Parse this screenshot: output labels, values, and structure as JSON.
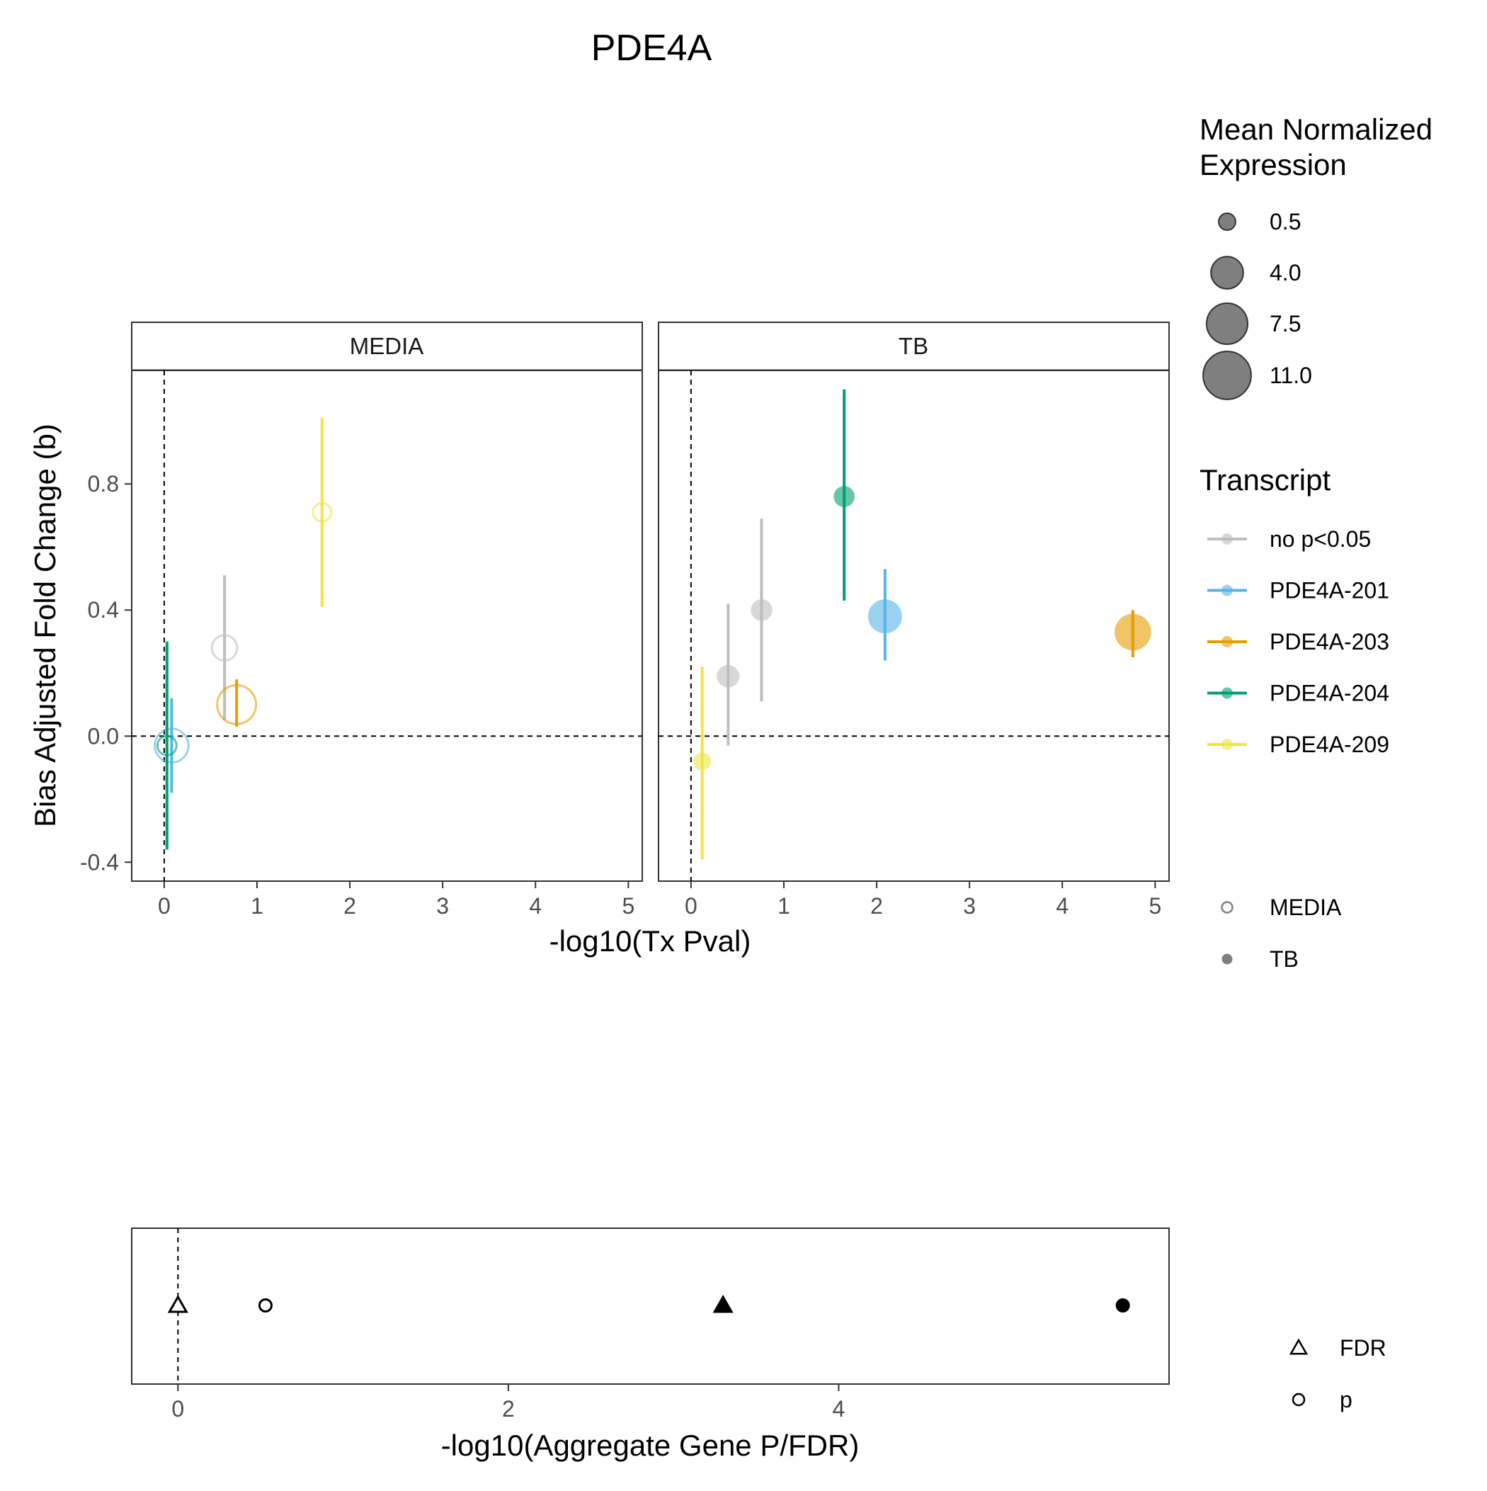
{
  "chart_data": [
    {
      "type": "scatter",
      "title": "PDE4A",
      "xlabel": "-log10(Tx Pval)",
      "ylabel": "Bias Adjusted Fold Change (b)",
      "xlim": [
        -0.35,
        5.15
      ],
      "ylim": [
        -0.46,
        1.16
      ],
      "x_ticks": [
        "0",
        "1",
        "2",
        "3",
        "4",
        "5"
      ],
      "y_ticks": [
        "-0.4",
        "0.0",
        "0.4",
        "0.8"
      ],
      "reference_lines": {
        "x": 0,
        "y": 0,
        "style": "dashed"
      },
      "grid": false,
      "facets": [
        {
          "label": "MEDIA",
          "points": [
            {
              "transcript": "no p<0.05",
              "x": 0.65,
              "y": 0.28,
              "ymin": 0.05,
              "ymax": 0.51,
              "expr": 2.0
            },
            {
              "transcript": "PDE4A-201",
              "x": 0.08,
              "y": -0.03,
              "ymin": -0.18,
              "ymax": 0.12,
              "expr": 4.5
            },
            {
              "transcript": "PDE4A-203",
              "x": 0.78,
              "y": 0.1,
              "ymin": 0.03,
              "ymax": 0.18,
              "expr": 6.5
            },
            {
              "transcript": "PDE4A-204",
              "x": 0.03,
              "y": -0.03,
              "ymin": -0.36,
              "ymax": 0.3,
              "expr": 0.8
            },
            {
              "transcript": "PDE4A-209",
              "x": 1.7,
              "y": 0.71,
              "ymin": 0.41,
              "ymax": 1.01,
              "expr": 0.7
            }
          ]
        },
        {
          "label": "TB",
          "points": [
            {
              "transcript": "no p<0.05",
              "x": 0.4,
              "y": 0.19,
              "ymin": -0.03,
              "ymax": 0.42,
              "expr": 1.4
            },
            {
              "transcript": "no p<0.05",
              "x": 0.76,
              "y": 0.4,
              "ymin": 0.11,
              "ymax": 0.69,
              "expr": 1.2
            },
            {
              "transcript": "PDE4A-201",
              "x": 2.09,
              "y": 0.38,
              "ymin": 0.24,
              "ymax": 0.53,
              "expr": 4.6
            },
            {
              "transcript": "PDE4A-203",
              "x": 4.76,
              "y": 0.33,
              "ymin": 0.25,
              "ymax": 0.4,
              "expr": 5.6
            },
            {
              "transcript": "PDE4A-204",
              "x": 1.65,
              "y": 0.76,
              "ymin": 0.43,
              "ymax": 1.1,
              "expr": 1.1
            },
            {
              "transcript": "PDE4A-209",
              "x": 0.12,
              "y": -0.08,
              "ymin": -0.39,
              "ymax": 0.22,
              "expr": 0.6
            }
          ]
        }
      ],
      "legend_size": {
        "title": "Mean Normalized\nExpression",
        "title_lines": [
          "Mean Normalized",
          "Expression"
        ],
        "breaks": [
          "0.5",
          "4.0",
          "7.5",
          "11.0"
        ],
        "values": [
          0.5,
          4.0,
          7.5,
          11.0
        ]
      },
      "legend_color": {
        "title": "Transcript",
        "entries": [
          {
            "label": "no p<0.05",
            "color": "#BEBEBE"
          },
          {
            "label": "PDE4A-201",
            "color": "#56B4E9"
          },
          {
            "label": "PDE4A-203",
            "color": "#E69F00"
          },
          {
            "label": "PDE4A-204",
            "color": "#009E73"
          },
          {
            "label": "PDE4A-209",
            "color": "#F0E442"
          }
        ]
      },
      "legend_fill": {
        "entries": [
          {
            "label": "MEDIA",
            "shape": "open-circle"
          },
          {
            "label": "TB",
            "shape": "filled-circle"
          }
        ]
      },
      "legend_placement": "right"
    },
    {
      "type": "scatter",
      "xlabel": "-log10(Aggregate Gene P/FDR)",
      "ylabel": "",
      "xlim": [
        -0.28,
        6.0
      ],
      "x_ticks": [
        "0",
        "2",
        "4"
      ],
      "reference_lines": {
        "x": 0,
        "style": "dashed"
      },
      "points": [
        {
          "metric": "FDR",
          "condition": "MEDIA",
          "x": 0.0
        },
        {
          "metric": "p",
          "condition": "MEDIA",
          "x": 0.53
        },
        {
          "metric": "FDR",
          "condition": "TB",
          "x": 3.3
        },
        {
          "metric": "p",
          "condition": "TB",
          "x": 5.72
        }
      ],
      "legend_shape": {
        "entries": [
          {
            "label": "FDR",
            "shape": "triangle"
          },
          {
            "label": "p",
            "shape": "circle"
          }
        ]
      }
    }
  ]
}
